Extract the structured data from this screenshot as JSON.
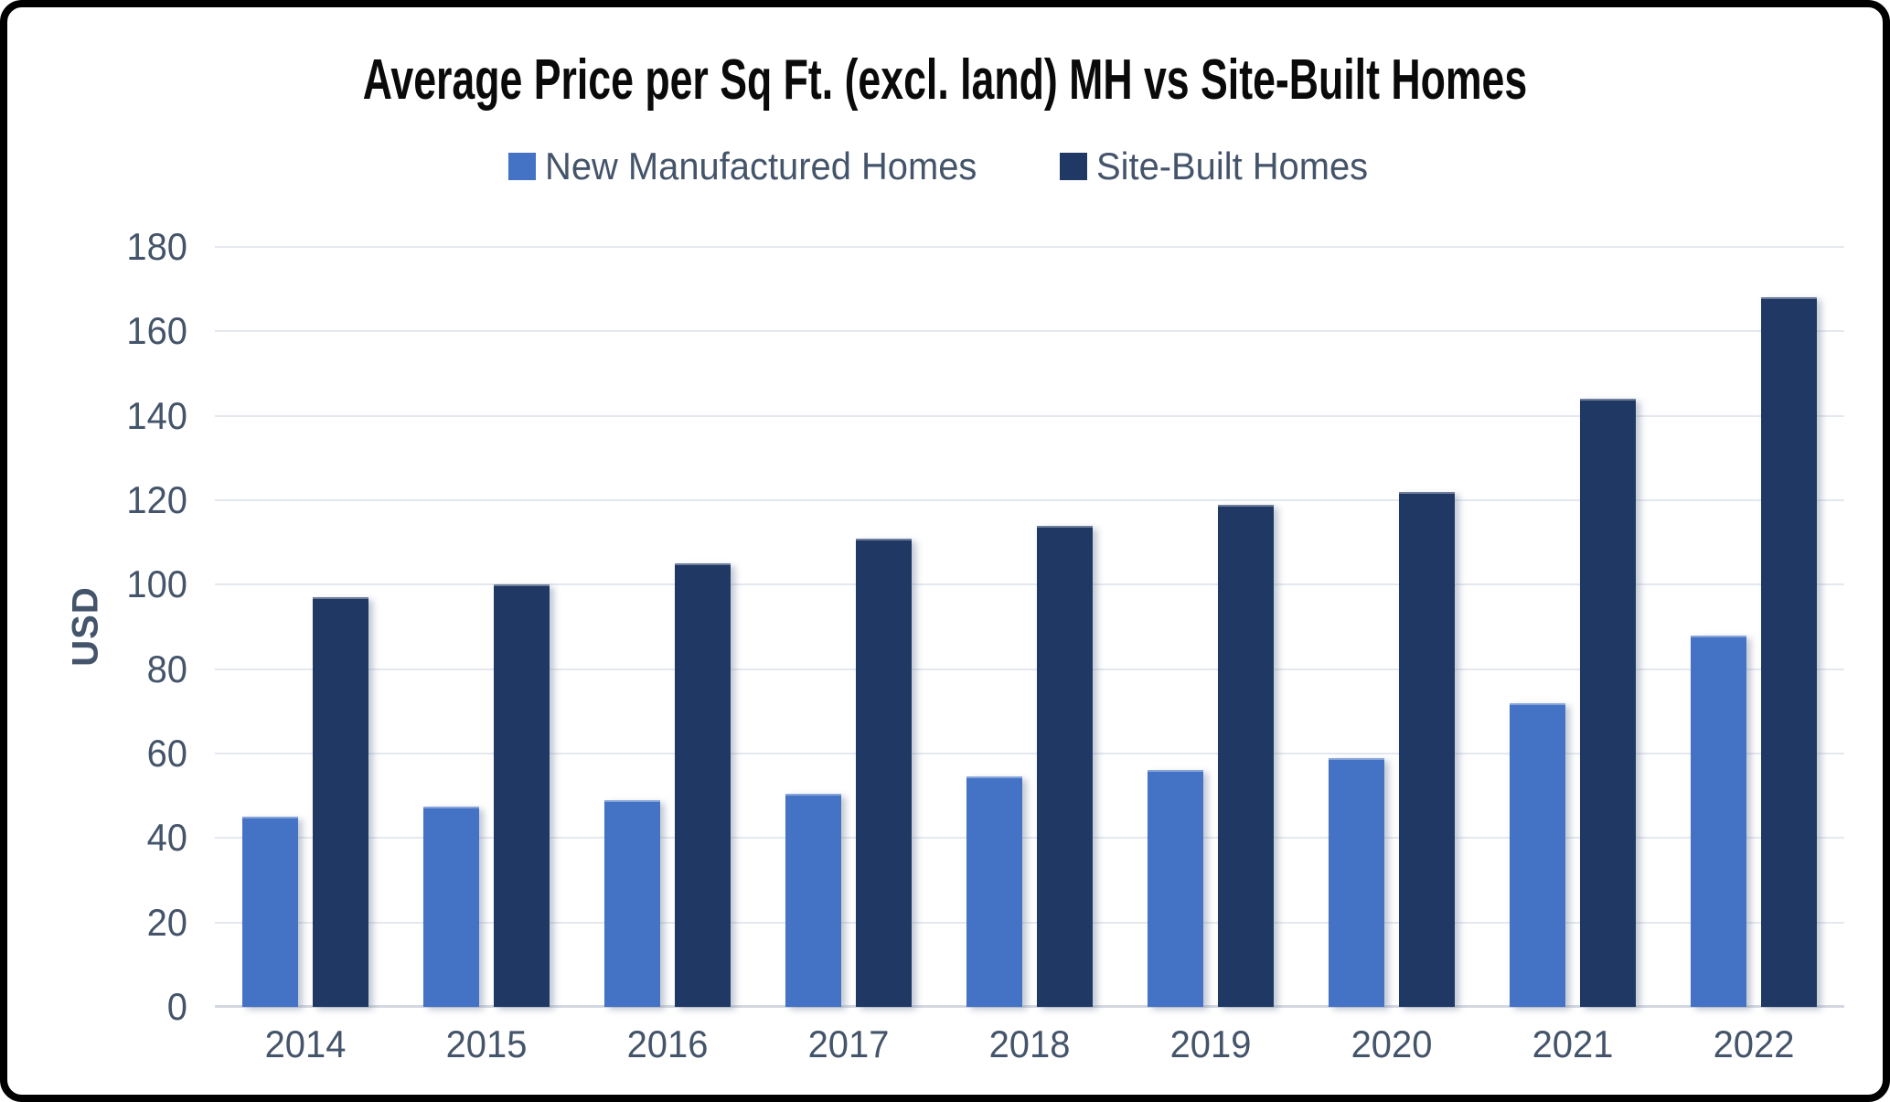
{
  "frame": {
    "border_color": "#000000",
    "background_color": "#ffffff"
  },
  "chart_data": {
    "type": "bar",
    "title": "Average Price per Sq Ft. (excl. land) MH vs Site-Built Homes",
    "xlabel": "",
    "ylabel": "USD",
    "categories": [
      "2014",
      "2015",
      "2016",
      "2017",
      "2018",
      "2019",
      "2020",
      "2021",
      "2022"
    ],
    "series": [
      {
        "name": "New Manufactured Homes",
        "color": "#4472c4",
        "values": [
          45,
          47.5,
          49,
          50.5,
          54.5,
          56,
          59,
          72,
          88
        ]
      },
      {
        "name": "Site-Built Homes",
        "color": "#1f3864",
        "values": [
          97,
          100,
          105,
          111,
          114,
          119,
          122,
          144,
          168
        ]
      }
    ],
    "ylim": [
      0,
      180
    ],
    "yticks": [
      0,
      20,
      40,
      60,
      80,
      100,
      120,
      140,
      160,
      180
    ],
    "grid": true,
    "legend_position": "top-center",
    "colors": {
      "axis_text": "#44546a",
      "gridline": "#e4e8ef",
      "axis_line": "#d2d7e0",
      "title_text": "#0a0a0a"
    }
  }
}
